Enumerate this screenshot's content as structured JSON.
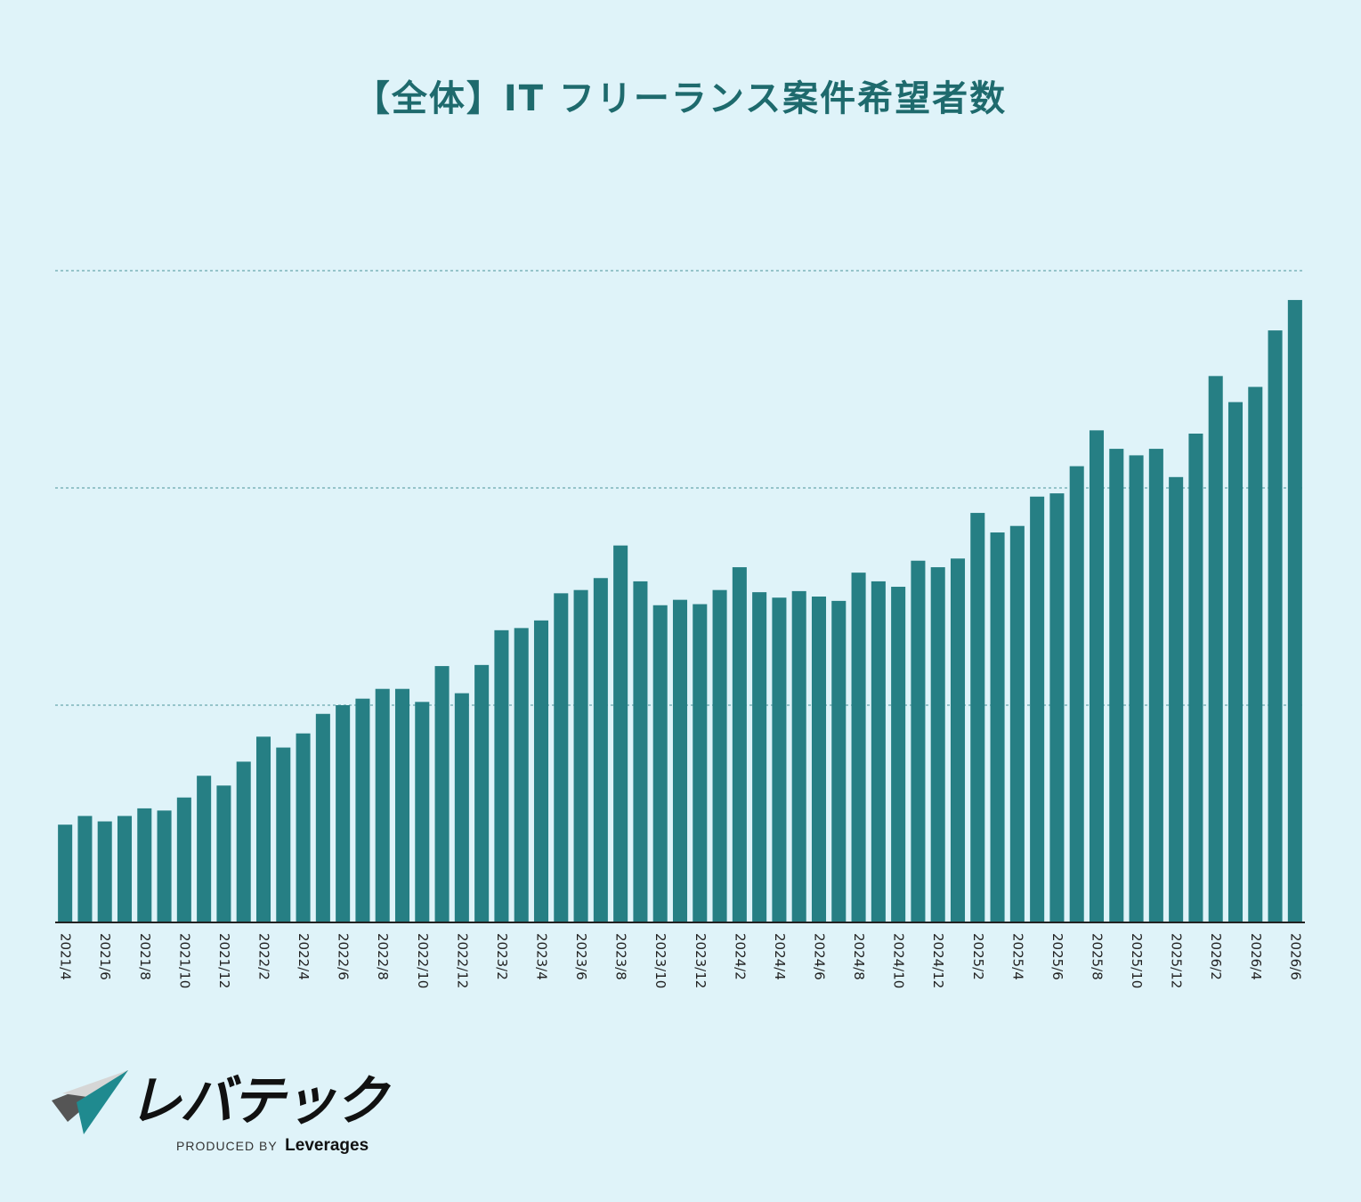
{
  "chart_data": {
    "type": "bar",
    "title": "【全体】IT フリーランス案件希望者数",
    "xlabel": "",
    "ylabel": "",
    "ylim": [
      0,
      300
    ],
    "y_gridlines": [
      100,
      200,
      300
    ],
    "y_tick_labels_shown": false,
    "grid": true,
    "bar_color": "#267f84",
    "categories": [
      "2021/4",
      "2021/5",
      "2021/6",
      "2021/7",
      "2021/8",
      "2021/9",
      "2021/10",
      "2021/11",
      "2021/12",
      "2022/1",
      "2022/2",
      "2022/3",
      "2022/4",
      "2022/5",
      "2022/6",
      "2022/7",
      "2022/8",
      "2022/9",
      "2022/10",
      "2022/11",
      "2022/12",
      "2023/1",
      "2023/2",
      "2023/3",
      "2023/4",
      "2023/5",
      "2023/6",
      "2023/7",
      "2023/8",
      "2023/9",
      "2023/10",
      "2023/11",
      "2023/12",
      "2024/1",
      "2024/2",
      "2024/3",
      "2024/4",
      "2024/5",
      "2024/6",
      "2024/7",
      "2024/8",
      "2024/9",
      "2024/10",
      "2024/11",
      "2024/12",
      "2025/1",
      "2025/2",
      "2025/3",
      "2025/4",
      "2025/5",
      "2025/6",
      "2025/7",
      "2025/8",
      "2025/9",
      "2025/10",
      "2025/11",
      "2025/12",
      "2026/1",
      "2026/2",
      "2026/3",
      "2026/4",
      "2026/5",
      "2026/6"
    ],
    "tick_labels": [
      "2021/4",
      "2021/6",
      "2021/8",
      "2021/10",
      "2021/12",
      "2022/2",
      "2022/4",
      "2022/6",
      "2022/8",
      "2022/10",
      "2022/12",
      "2023/2",
      "2023/4",
      "2023/6",
      "2023/8",
      "2023/10",
      "2023/12",
      "2024/2",
      "2024/4",
      "2024/6",
      "2024/8",
      "2024/10",
      "2024/12",
      "2025/2",
      "2025/4",
      "2025/6",
      "2025/8",
      "2025/10",
      "2025/12",
      "2026/2",
      "2026/4",
      "2026/6"
    ],
    "values": [
      45,
      49,
      46.5,
      49,
      52.5,
      51.5,
      57.5,
      67.5,
      63,
      74,
      85.5,
      80.5,
      87,
      96,
      100,
      103,
      107.5,
      107.5,
      101.5,
      118,
      105.5,
      118.5,
      134.5,
      135.5,
      139,
      151.5,
      153,
      158.5,
      173.5,
      157,
      146,
      148.5,
      146.5,
      153,
      163.5,
      152,
      149.5,
      152.5,
      150,
      148,
      161,
      157,
      154.5,
      166.5,
      163.5,
      167.5,
      188.5,
      179.5,
      182.5,
      196,
      197.5,
      210,
      226.5,
      218,
      215,
      218,
      205,
      225,
      251.5,
      239.5,
      246.5,
      272.5,
      286.5
    ]
  },
  "logo": {
    "brand": "レバテック",
    "produced_by": "PRODUCED BY",
    "company": "Leverages"
  }
}
